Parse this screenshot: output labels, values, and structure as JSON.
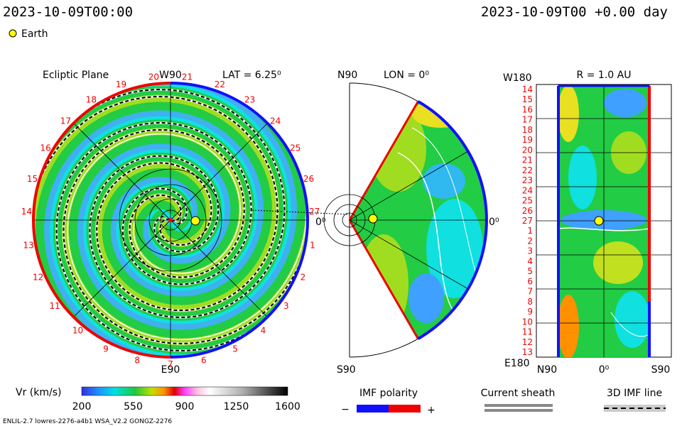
{
  "header": {
    "time_left": "2023-10-09T00:00",
    "time_right": "2023-10-09T00 +0.00 day",
    "legend": "Earth"
  },
  "ecliptic": {
    "title": "Ecliptic Plane",
    "top": "W90",
    "lat": "LAT = 6.25⁰",
    "right": "0⁰",
    "bottom": "E90",
    "longitudes": [
      1,
      2,
      3,
      4,
      5,
      6,
      7,
      8,
      9,
      10,
      11,
      12,
      13,
      14,
      15,
      16,
      17,
      18,
      19,
      20,
      21,
      22,
      23,
      24,
      25,
      26,
      27
    ]
  },
  "meridional": {
    "top": "N90",
    "lon": "LON = 0⁰",
    "right": "0⁰",
    "bottom": "S90"
  },
  "radial": {
    "top_left": "W180",
    "title": "R = 1.0 AU",
    "bottom_left": "E180",
    "x_left": "N90",
    "x_mid": "0⁰",
    "x_right": "S90",
    "longitudes": [
      14,
      15,
      16,
      17,
      18,
      19,
      20,
      21,
      22,
      23,
      24,
      25,
      26,
      27,
      1,
      2,
      3,
      4,
      5,
      6,
      7,
      8,
      9,
      10,
      11,
      12,
      13
    ]
  },
  "colorbar": {
    "label": "Vr (km/s)",
    "ticks": [
      "200",
      "550",
      "900",
      "1250",
      "1600"
    ]
  },
  "polarity": {
    "label": "IMF polarity",
    "minus": "−",
    "plus": "+"
  },
  "sheath": {
    "label": "Current sheath"
  },
  "imf_line": {
    "label": "3D IMF line"
  },
  "footer": {
    "model": "ENLIL-2.7 lowres-2276-a4b1 WSA_V2.2 GONGZ-2276"
  }
}
